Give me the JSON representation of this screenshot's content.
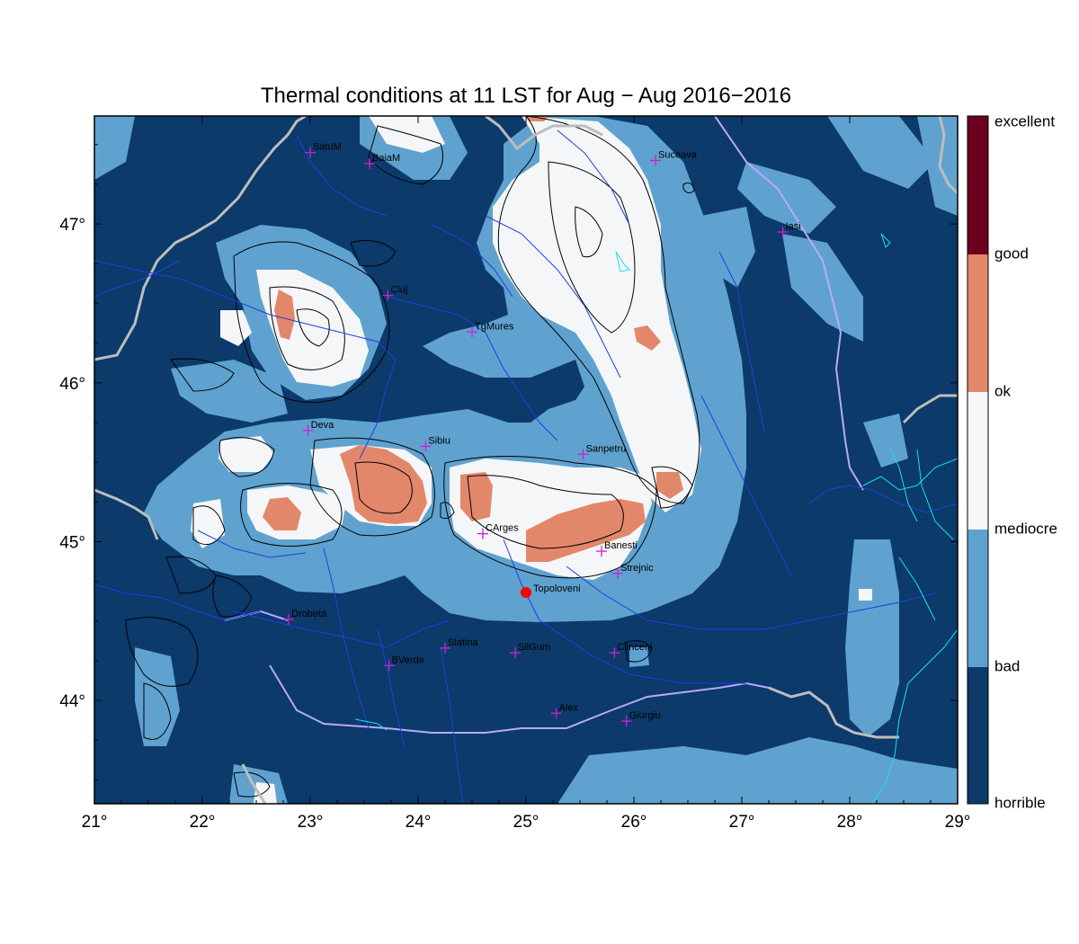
{
  "title": "Thermal conditions at 11 LST for Aug − Aug  2016−2016",
  "colors": {
    "horrible": "#0b3a6b",
    "bad": "#5fa2cf",
    "mediocre": "#f4f6f8",
    "ok": "#e3876a",
    "good": "#6b001f",
    "border": "#bdbdbd",
    "river": "#1f3fe0",
    "coast": "#19e0f0",
    "contour": "#000000",
    "marker": "#d020d0",
    "highlight": "#ff0000"
  },
  "axes": {
    "lon_min": 21,
    "lon_max": 29,
    "lat_min": 43.35,
    "lat_max": 47.68,
    "x_ticks": [
      "21°",
      "22°",
      "23°",
      "24°",
      "25°",
      "26°",
      "27°",
      "28°",
      "29°"
    ],
    "y_ticks": [
      "44°",
      "45°",
      "46°",
      "47°"
    ]
  },
  "colorbar": {
    "labels": [
      "horrible",
      "bad",
      "mediocre",
      "ok",
      "good",
      "excellent"
    ]
  },
  "cities": [
    {
      "name": "SatuM",
      "lon": 23.0,
      "lat": 47.45
    },
    {
      "name": "BaiaM",
      "lon": 23.55,
      "lat": 47.38
    },
    {
      "name": "Suceava",
      "lon": 26.2,
      "lat": 47.4
    },
    {
      "name": "Iasi",
      "lon": 27.38,
      "lat": 46.95
    },
    {
      "name": "Cluj",
      "lon": 23.72,
      "lat": 46.55
    },
    {
      "name": "TgMures",
      "lon": 24.5,
      "lat": 46.32
    },
    {
      "name": "Deva",
      "lon": 22.98,
      "lat": 45.7
    },
    {
      "name": "Sibiu",
      "lon": 24.07,
      "lat": 45.6
    },
    {
      "name": "Sanpetru",
      "lon": 25.53,
      "lat": 45.55
    },
    {
      "name": "CArges",
      "lon": 24.6,
      "lat": 45.05
    },
    {
      "name": "Banesti",
      "lon": 25.7,
      "lat": 44.94
    },
    {
      "name": "Strejnic",
      "lon": 25.85,
      "lat": 44.8
    },
    {
      "name": "Drobeta",
      "lon": 22.8,
      "lat": 44.51
    },
    {
      "name": "Slatina",
      "lon": 24.25,
      "lat": 44.33
    },
    {
      "name": "SilGum",
      "lon": 24.9,
      "lat": 44.3
    },
    {
      "name": "Clinceni",
      "lon": 25.82,
      "lat": 44.3
    },
    {
      "name": "BVerde",
      "lon": 23.73,
      "lat": 44.22
    },
    {
      "name": "Alex",
      "lon": 25.28,
      "lat": 43.92
    },
    {
      "name": "Giurgiu",
      "lon": 25.93,
      "lat": 43.87
    }
  ],
  "highlight_city": {
    "name": "Topoloveni",
    "lon": 25.0,
    "lat": 44.68
  }
}
